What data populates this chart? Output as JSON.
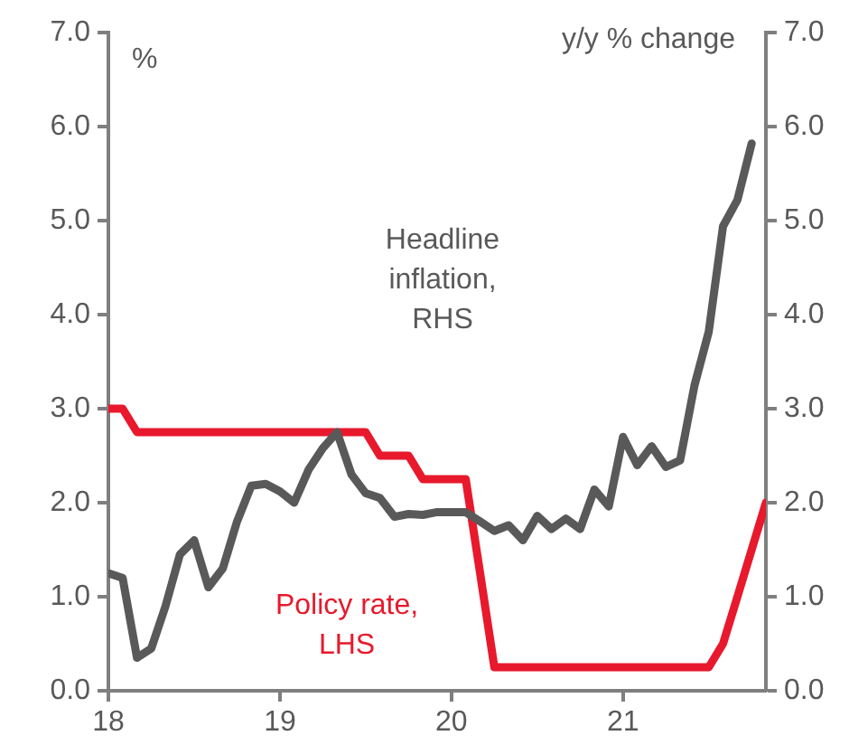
{
  "chart_data": {
    "type": "line",
    "ylabel": "%",
    "y2label": "y/y % change",
    "xlim": [
      18,
      21.833
    ],
    "xticks": [
      18,
      19,
      20,
      21
    ],
    "ylim": [
      0,
      7
    ],
    "yticks": [
      {
        "value": 0,
        "label": "0.0"
      },
      {
        "value": 1,
        "label": "1.0"
      },
      {
        "value": 2,
        "label": "2.0"
      },
      {
        "value": 3,
        "label": "3.0"
      },
      {
        "value": 4,
        "label": "4.0"
      },
      {
        "value": 5,
        "label": "5.0"
      },
      {
        "value": 6,
        "label": "6.0"
      },
      {
        "value": 7,
        "label": "7.0"
      }
    ],
    "y2lim": [
      0,
      7
    ],
    "y2ticks": [
      {
        "value": 0,
        "label": "0.0"
      },
      {
        "value": 1,
        "label": "1.0"
      },
      {
        "value": 2,
        "label": "2.0"
      },
      {
        "value": 3,
        "label": "3.0"
      },
      {
        "value": 4,
        "label": "4.0"
      },
      {
        "value": 5,
        "label": "5.0"
      },
      {
        "value": 6,
        "label": "6.0"
      },
      {
        "value": 7,
        "label": "7.0"
      }
    ],
    "grid": false,
    "legend": false,
    "marker": "none",
    "line_style": "solid",
    "series": [
      {
        "name": "Headline inflation, RHS",
        "color": "#595959",
        "axis": "y2",
        "x": [
          18,
          18.083,
          18.167,
          18.25,
          18.333,
          18.417,
          18.5,
          18.583,
          18.667,
          18.75,
          18.833,
          18.917,
          19,
          19.083,
          19.167,
          19.25,
          19.333,
          19.417,
          19.5,
          19.583,
          19.667,
          19.75,
          19.833,
          19.917,
          20,
          20.083,
          20.167,
          20.25,
          20.333,
          20.417,
          20.5,
          20.583,
          20.667,
          20.75,
          20.833,
          20.917,
          21,
          21.083,
          21.167,
          21.25,
          21.333,
          21.417,
          21.5,
          21.583,
          21.667,
          21.75
        ],
        "values": [
          1.25,
          1.2,
          0.35,
          0.45,
          0.9,
          1.45,
          1.6,
          1.1,
          1.3,
          1.8,
          2.18,
          2.2,
          2.12,
          2.0,
          2.35,
          2.58,
          2.75,
          2.3,
          2.1,
          2.05,
          1.85,
          1.88,
          1.87,
          1.9,
          1.9,
          1.9,
          1.8,
          1.7,
          1.76,
          1.6,
          1.86,
          1.72,
          1.83,
          1.72,
          2.14,
          1.96,
          2.7,
          2.4,
          2.6,
          2.38,
          2.45,
          3.25,
          3.82,
          4.94,
          5.22,
          5.82
        ]
      },
      {
        "name": "Policy rate, LHS",
        "color": "#e8192c",
        "x": [
          18,
          18.083,
          18.167,
          18.25,
          18.333,
          18.417,
          18.5,
          18.583,
          18.667,
          18.75,
          18.833,
          18.917,
          19,
          19.083,
          19.167,
          19.25,
          19.333,
          19.417,
          19.5,
          19.583,
          19.667,
          19.75,
          19.833,
          19.917,
          20,
          20.083,
          20.167,
          20.25,
          20.333,
          20.417,
          20.5,
          20.583,
          20.667,
          20.75,
          20.833,
          20.917,
          21,
          21.083,
          21.167,
          21.25,
          21.333,
          21.417,
          21.5,
          21.583,
          21.667,
          21.75,
          21.833
        ],
        "values": [
          3.0,
          3.0,
          2.75,
          2.75,
          2.75,
          2.75,
          2.75,
          2.75,
          2.75,
          2.75,
          2.75,
          2.75,
          2.75,
          2.75,
          2.75,
          2.75,
          2.75,
          2.75,
          2.75,
          2.5,
          2.5,
          2.5,
          2.25,
          2.25,
          2.25,
          2.25,
          1.25,
          0.25,
          0.25,
          0.25,
          0.25,
          0.25,
          0.25,
          0.25,
          0.25,
          0.25,
          0.25,
          0.25,
          0.25,
          0.25,
          0.25,
          0.25,
          0.25,
          0.5,
          1.0,
          1.5,
          2.0
        ]
      }
    ]
  }
}
